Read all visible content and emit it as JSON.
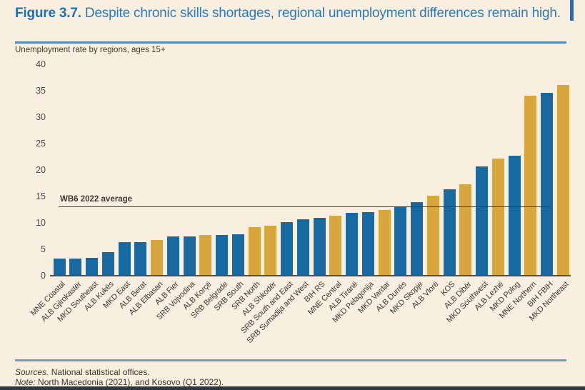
{
  "header": {
    "figure_label": "Figure 3.7.",
    "title": "Despite chronic skills shortages, regional unemployment differences remain high.",
    "subtitle": "Unemployment rate by regions, ages 15+"
  },
  "chart_data": {
    "type": "bar",
    "title": "Unemployment rate by regions, ages 15+",
    "categories": [
      "MNE Coastal",
      "ALB Gjirokastër",
      "MKD Southeast",
      "ALB Kukës",
      "MKD East",
      "ALB Berat",
      "ALB Elbasan",
      "ALB Fier",
      "SRB Vojvodina",
      "ALB Korçë",
      "SRB Belgrade",
      "SRB South",
      "SRB North",
      "ALB Shkodër",
      "SRB South and East",
      "SRB Sumadija and West",
      "BIH RS",
      "MNE Central",
      "ALB Tiranë",
      "MKD Pelagonija",
      "MKD Vardar",
      "ALB Durrës",
      "MKD Skopje",
      "ALB Vlorë",
      "KOS",
      "ALB Dibër",
      "MKD Southwest",
      "ALB Lezhë",
      "MKD Polog",
      "MNE Northern",
      "BIH FBIH",
      "MKD Northeast"
    ],
    "values": [
      3.2,
      3.2,
      3.4,
      4.5,
      6.3,
      6.3,
      6.8,
      7.4,
      7.4,
      7.7,
      7.7,
      7.9,
      9.2,
      9.4,
      10.2,
      10.7,
      11.0,
      11.4,
      11.9,
      12.0,
      12.5,
      13.1,
      13.9,
      15.2,
      16.4,
      17.3,
      20.7,
      22.2,
      22.7,
      34.1,
      34.6,
      36.1
    ],
    "bar_colors": [
      "blue",
      "blue",
      "blue",
      "blue",
      "blue",
      "blue",
      "gold",
      "blue",
      "blue",
      "gold",
      "blue",
      "blue",
      "gold",
      "gold",
      "blue",
      "blue",
      "blue",
      "gold",
      "blue",
      "blue",
      "gold",
      "blue",
      "blue",
      "gold",
      "blue",
      "gold",
      "blue",
      "gold",
      "blue",
      "gold",
      "blue",
      "gold"
    ],
    "palette": {
      "blue": "#18699f",
      "gold": "#d7a63c"
    },
    "xlabel": "",
    "ylabel": "",
    "ylim": [
      0,
      40
    ],
    "yticks": [
      0,
      5,
      10,
      15,
      20,
      25,
      30,
      35,
      40
    ],
    "grid": false,
    "legend": "none",
    "annotation": {
      "label": "WB6 2022 average",
      "value": 13
    }
  },
  "footer": {
    "sources_label": "Sources.",
    "sources_text": " National statistical offices.",
    "note_label": "Note:",
    "note_text": " North Macedonia (2021), and Kosovo (Q1 2022)."
  }
}
